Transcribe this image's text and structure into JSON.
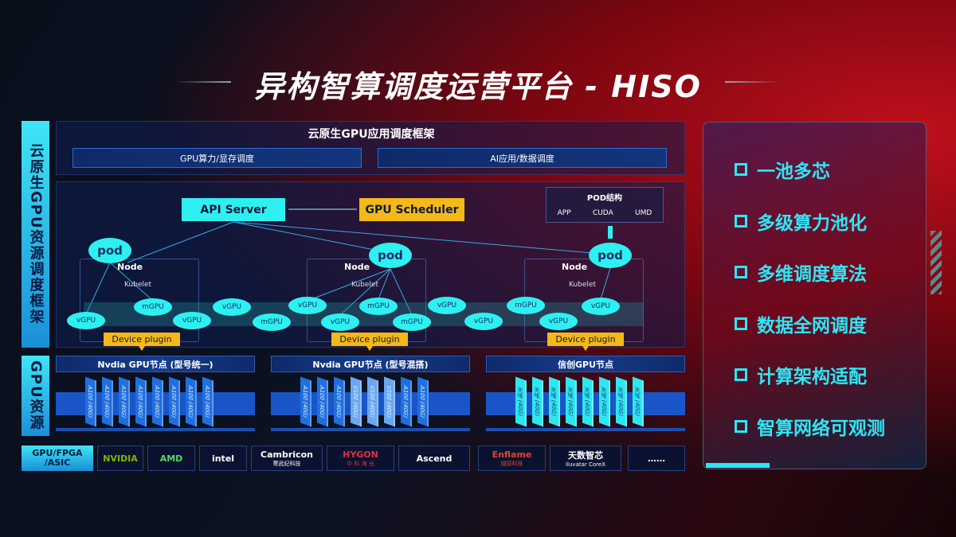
{
  "title": "异构智算调度运营平台 - HISO",
  "left_labels": {
    "framework": "云原生GPU资源调度框架",
    "resources": "GPU资源",
    "chips": "GPU/FPGA /ASIC"
  },
  "app_framework": {
    "title": "云原生GPU应用调度框架",
    "items": [
      "GPU算力/显存调度",
      "AI应用/数据调度"
    ]
  },
  "control": {
    "api_server": "API Server",
    "gpu_scheduler": "GPU Scheduler"
  },
  "pod_structure": {
    "title": "POD结构",
    "items": [
      "APP",
      "CUDA",
      "UMD"
    ]
  },
  "nodes": [
    {
      "pod": "pod",
      "label": "Node",
      "kubelet": "Kubelet",
      "plugin": "Device plugin"
    },
    {
      "pod": "pod",
      "label": "Node",
      "kubelet": "Kubelet",
      "plugin": "Device plugin"
    },
    {
      "pod": "pod",
      "label": "Node",
      "kubelet": "Kubelet",
      "plugin": "Device plugin"
    }
  ],
  "virtual_gpus": [
    "vGPU",
    "mGPU",
    "vGPU",
    "vGPU",
    "mGPU",
    "vGPU",
    "mGPU",
    "vGPU",
    "mGPU",
    "vGPU",
    "vGPU",
    "mGPU",
    "vGPU",
    "vGPU"
  ],
  "gpu_groups": [
    {
      "title": "Nvdia GPU节点 (型号统一)",
      "cards": [
        "A100 (40G)",
        "A100 (40G)",
        "A100 (40G)",
        "A100 (40G)",
        "A100 (40G)",
        "A100 (40G)",
        "A100 (40G)",
        "A100 (40G)"
      ],
      "color": "#1f6fe0"
    },
    {
      "title": "Nvdia GPU节点 (型号混搭)",
      "cards": [
        "A100 (40G)",
        "A100 (40G)",
        "A100 (40G)",
        "V100 (40G)",
        "V100 (40G)",
        "V100 (40G)",
        "A100 (40G)",
        "A100 (40G)"
      ],
      "color": "#1f6fe0"
    },
    {
      "title": "信创GPU节点",
      "cards": [
        "天垓 (40G)",
        "天垓 (40G)",
        "天垓 (40G)",
        "天垓 (40G)",
        "天垓 (40G)",
        "天垓 (40G)",
        "天垓 (40G)",
        "天垓 (40G)"
      ],
      "color": "#2ee6f0"
    }
  ],
  "vendors": [
    {
      "name": "NVIDIA",
      "sub": "",
      "color": "#7ab800"
    },
    {
      "name": "AMD",
      "sub": "",
      "color": "#4cd964"
    },
    {
      "name": "intel",
      "sub": "",
      "color": "#ffffff"
    },
    {
      "name": "Cambricon",
      "sub": "寒武纪科技",
      "color": "#ffffff"
    },
    {
      "name": "HYGON",
      "sub": "中 科 海 光",
      "color": "#e0303a"
    },
    {
      "name": "Ascend",
      "sub": "",
      "color": "#ffffff"
    },
    {
      "name": "Enflame",
      "sub": "燧原科技",
      "color": "#e8402a"
    },
    {
      "name": "天数智芯",
      "sub": "Iluvatar CoreX",
      "color": "#ffffff"
    },
    {
      "name": "……",
      "sub": "",
      "color": "#ffffff"
    }
  ],
  "features": [
    "一池多芯",
    "多级算力池化",
    "多维调度算法",
    "数据全网调度",
    "计算架构适配",
    "智算网络可观测"
  ],
  "colors": {
    "cyan": "#2ef0f0",
    "yellow": "#f5b81a",
    "blue": "#1f6fe0"
  }
}
